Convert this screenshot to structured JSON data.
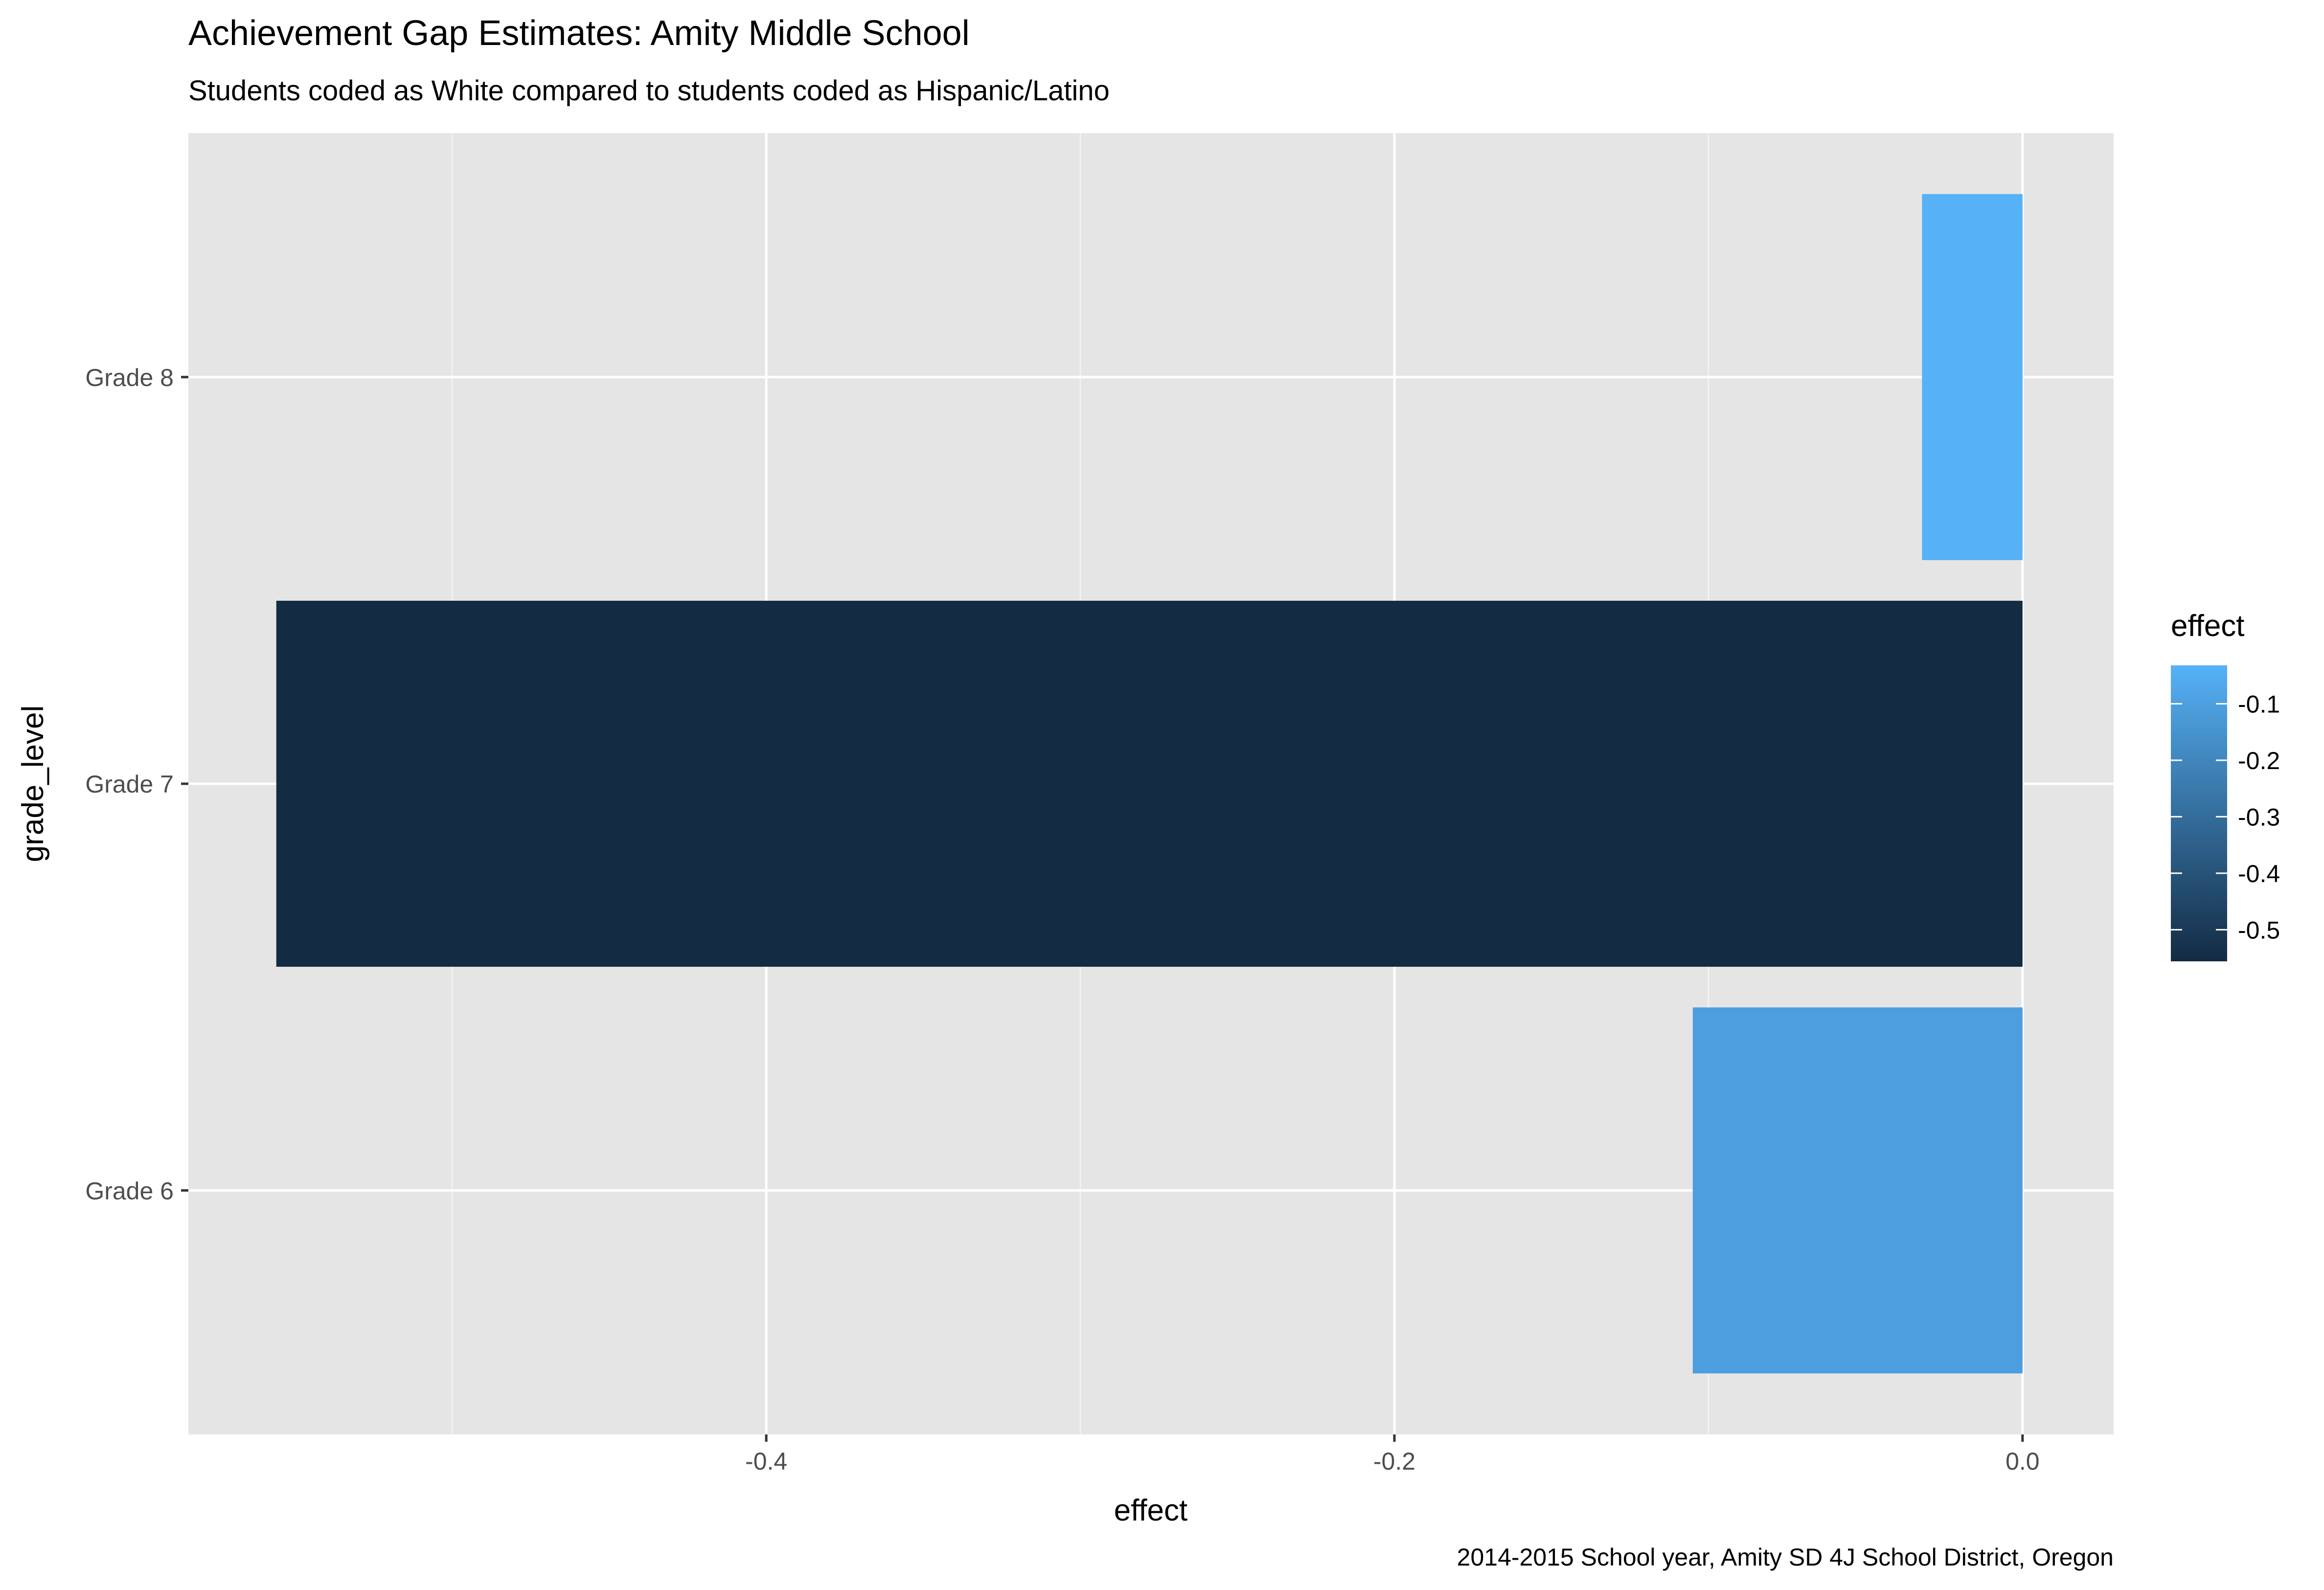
{
  "chart_data": {
    "type": "bar",
    "orientation": "horizontal",
    "title": "Achievement Gap Estimates: Amity Middle School",
    "subtitle": "Students coded as White compared to students coded as Hispanic/Latino",
    "caption": "2014-2015 School year, Amity SD 4J School District, Oregon",
    "xlabel": "effect",
    "ylabel": "grade_level",
    "categories": [
      "Grade 6",
      "Grade 7",
      "Grade 8"
    ],
    "values": [
      -0.105,
      -0.556,
      -0.032
    ],
    "xlim": [
      -0.584,
      0.029
    ],
    "x_ticks": [
      -0.4,
      -0.2,
      0.0
    ],
    "x_tick_labels": [
      "-0.4",
      "-0.2",
      "0.0"
    ],
    "x_minor_ticks": [
      -0.5,
      -0.3,
      -0.1
    ],
    "grid": true,
    "panel_background": "#e5e5e5",
    "legend": {
      "title": "effect",
      "placement": "right",
      "range": [
        -0.556,
        -0.032
      ],
      "ticks": [
        -0.1,
        -0.2,
        -0.3,
        -0.4,
        -0.5
      ],
      "tick_labels": [
        "-0.1",
        "-0.2",
        "-0.3",
        "-0.4",
        "-0.5"
      ],
      "color_low": "#132B43",
      "color_high": "#56B1F7"
    }
  }
}
